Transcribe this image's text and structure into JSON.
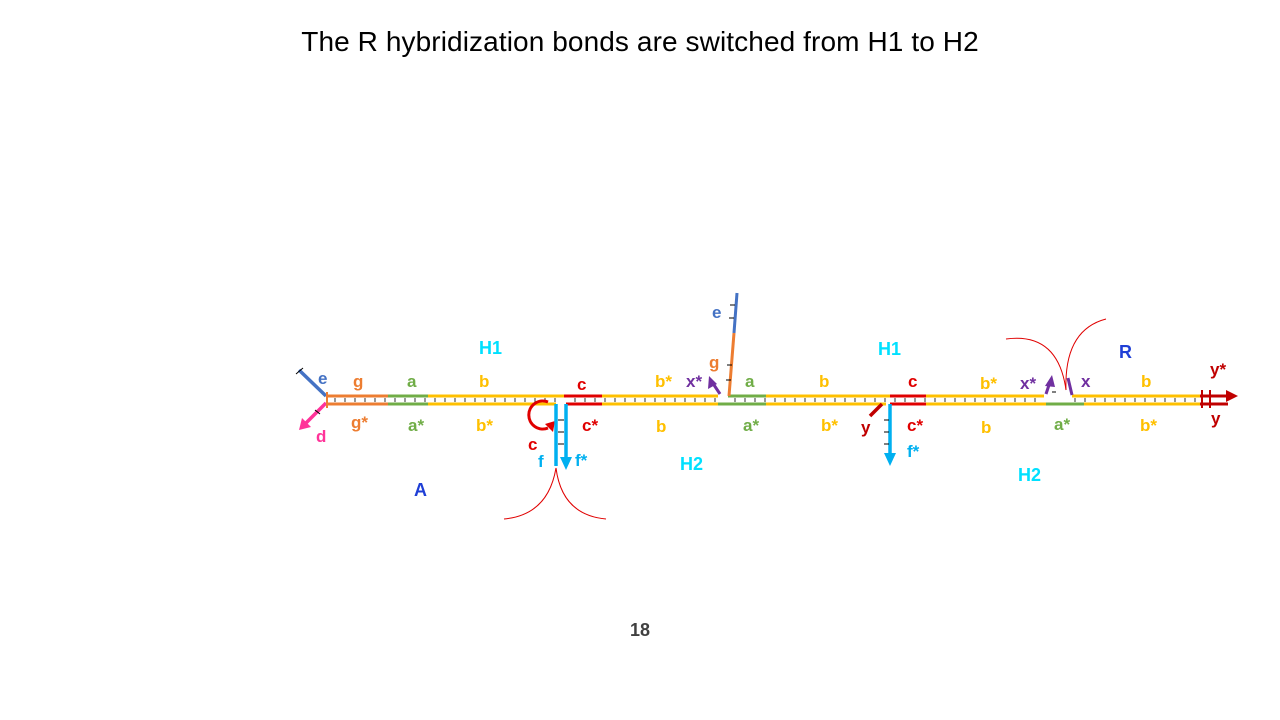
{
  "slide": {
    "title": "The R hybridization bonds are switched from H1 to H2",
    "page_number": "18"
  },
  "colors": {
    "orange": "#ed7d31",
    "green": "#70ad47",
    "yellow": "#ffc000",
    "red": "#e00000",
    "dark_red": "#c00000",
    "cyan": "#00b0f0",
    "label_cyan": "#00e0ff",
    "purple": "#7030a0",
    "blue": "#4472c4",
    "pink": "#ff3399",
    "royal_blue": "#1f3fd6"
  },
  "strand_labels": {
    "e_left": "e",
    "d_left": "d",
    "g_top": "g",
    "g_star_bottom": "g*",
    "a_top_1": "a",
    "a_star_bottom_1": "a*",
    "b_top_1": "b",
    "b_star_bottom_1": "b*",
    "c_top_1": "c",
    "c_loop": "c",
    "c_star_1": "c*",
    "f_1": "f",
    "f_star_1": "f*",
    "b_star_top_1": "b*",
    "x_star_top_1": "x*",
    "e_stem": "e",
    "g_stem": "g",
    "b_bottom_1": "b",
    "a_top_2": "a",
    "a_star_bottom_2": "a*",
    "b_top_2": "b",
    "b_star_bottom_2": "b*",
    "c_top_2": "c",
    "y_mid": "y",
    "c_star_2": "c*",
    "f_star_2": "f*",
    "b_star_top_2": "b*",
    "b_bottom_2": "b",
    "x_star_top_2": "x*",
    "x_top": "x",
    "a_star_bottom_3": "a*",
    "b_top_3": "b",
    "b_star_bottom_3": "b*",
    "y_star_right": "y*",
    "y_right": "y"
  },
  "complex_labels": {
    "h1_left": "H1",
    "h1_right": "H1",
    "h2_left": "H2",
    "h2_right": "H2",
    "a_complex": "A",
    "r_complex": "R"
  }
}
